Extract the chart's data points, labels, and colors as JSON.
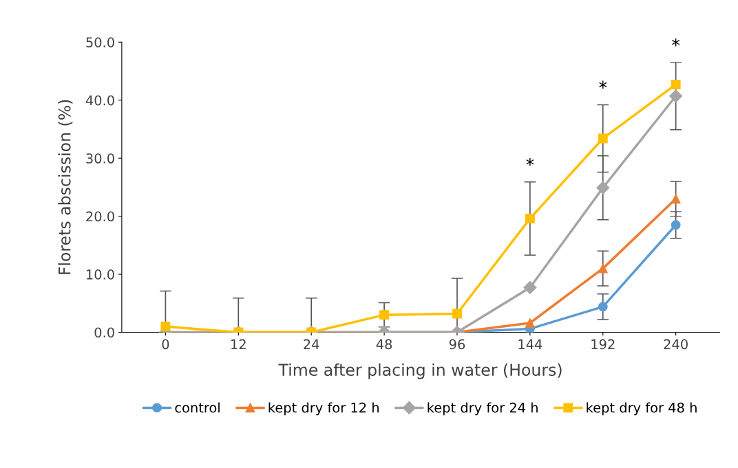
{
  "chart_data": {
    "type": "line",
    "xlabel": "Time after placing in water (Hours)",
    "ylabel": "Florets abscission (%)",
    "categories": [
      "0",
      "12",
      "24",
      "48",
      "96",
      "144",
      "192",
      "240"
    ],
    "series": [
      {
        "name": "control",
        "color": "#5b9bd5",
        "marker": "circle",
        "values": [
          null,
          null,
          null,
          0,
          0,
          0.6,
          4.4,
          18.5
        ],
        "errors": [
          null,
          null,
          null,
          null,
          null,
          null,
          2.2,
          2.3
        ]
      },
      {
        "name": "kept dry for 12 h",
        "color": "#ed7d31",
        "marker": "triangle",
        "values": [
          0,
          0,
          0,
          0,
          0,
          1.6,
          11.0,
          23.0
        ],
        "errors": [
          null,
          null,
          null,
          null,
          null,
          null,
          3.0,
          3.0
        ]
      },
      {
        "name": "kept dry for 24 h",
        "color": "#a5a5a5",
        "marker": "diamond",
        "values": [
          0,
          0,
          0,
          0,
          0,
          7.7,
          24.9,
          40.7
        ],
        "errors": [
          null,
          null,
          null,
          null,
          null,
          null,
          5.5,
          5.8
        ]
      },
      {
        "name": "kept dry for 48 h",
        "color": "#ffc000",
        "marker": "square",
        "values": [
          1.0,
          0,
          0,
          3.0,
          3.2,
          19.6,
          33.4,
          42.7
        ],
        "errors": [
          6.1,
          5.9,
          5.9,
          2.1,
          6.1,
          6.3,
          5.8,
          null
        ]
      }
    ],
    "ylim": [
      0,
      50
    ],
    "yticks": [
      {
        "value": 0,
        "label": "0.0"
      },
      {
        "value": 10,
        "label": "10.0"
      },
      {
        "value": 20,
        "label": "20.0"
      },
      {
        "value": 30,
        "label": "30.0"
      },
      {
        "value": 40,
        "label": "40.0"
      },
      {
        "value": 50,
        "label": "50.0"
      }
    ],
    "annotations": [
      {
        "text": "*",
        "x": "144",
        "y": 25.9
      },
      {
        "text": "*",
        "x": "192",
        "y": 39.2
      },
      {
        "text": "*",
        "x": "240",
        "y": 46.5
      }
    ],
    "legend": "bottom",
    "grid": false,
    "line_style": "solid"
  }
}
